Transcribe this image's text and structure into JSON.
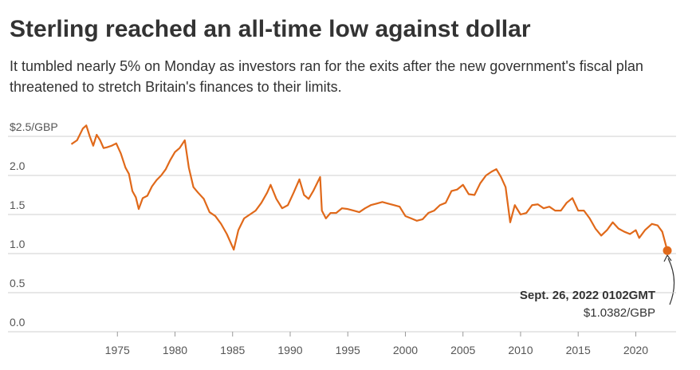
{
  "chart_data": {
    "type": "line",
    "title": "Sterling reached an all-time low against dollar",
    "subtitle": [
      "It tumbled nearly 5% on Monday as investors ran for the exits after the new government's fiscal plan",
      "threatened to stretch Britain's finances to their limits."
    ],
    "color": "#e0691a",
    "x": [
      1971,
      1971.5,
      1972,
      1972.3,
      1972.6,
      1972.9,
      1973.2,
      1973.5,
      1973.8,
      1974.1,
      1974.5,
      1974.9,
      1975.3,
      1975.7,
      1976,
      1976.3,
      1976.6,
      1976.85,
      1977.2,
      1977.6,
      1978,
      1978.4,
      1978.8,
      1979.2,
      1979.6,
      1980,
      1980.4,
      1980.85,
      1981.2,
      1981.6,
      1982,
      1982.5,
      1983,
      1983.5,
      1984,
      1984.5,
      1985.1,
      1985.5,
      1986,
      1986.5,
      1987,
      1987.5,
      1988,
      1988.3,
      1988.8,
      1989.3,
      1989.8,
      1990.3,
      1990.8,
      1991.2,
      1991.6,
      1992,
      1992.6,
      1992.75,
      1993.1,
      1993.5,
      1994,
      1994.5,
      1995,
      1995.5,
      1996,
      1996.5,
      1997,
      1997.5,
      1998,
      1998.5,
      1999,
      1999.5,
      2000,
      2000.5,
      2001,
      2001.5,
      2002,
      2002.5,
      2003,
      2003.5,
      2004,
      2004.5,
      2005,
      2005.5,
      2006,
      2006.5,
      2007,
      2007.5,
      2007.9,
      2008.3,
      2008.7,
      2009.1,
      2009.5,
      2010,
      2010.5,
      2011,
      2011.5,
      2012,
      2012.5,
      2013,
      2013.5,
      2014,
      2014.5,
      2015,
      2015.5,
      2016,
      2016.5,
      2017,
      2017.5,
      2018,
      2018.5,
      2019,
      2019.5,
      2020,
      2020.3,
      2020.8,
      2021.4,
      2021.9,
      2022.3,
      2022.74
    ],
    "values": [
      2.4,
      2.45,
      2.6,
      2.64,
      2.5,
      2.38,
      2.52,
      2.45,
      2.35,
      2.36,
      2.38,
      2.41,
      2.28,
      2.1,
      2.02,
      1.8,
      1.72,
      1.57,
      1.71,
      1.74,
      1.86,
      1.94,
      2.0,
      2.08,
      2.2,
      2.3,
      2.35,
      2.45,
      2.1,
      1.85,
      1.78,
      1.7,
      1.53,
      1.48,
      1.38,
      1.25,
      1.05,
      1.3,
      1.45,
      1.5,
      1.55,
      1.65,
      1.78,
      1.88,
      1.7,
      1.58,
      1.62,
      1.78,
      1.95,
      1.75,
      1.7,
      1.8,
      1.98,
      1.55,
      1.45,
      1.52,
      1.52,
      1.58,
      1.57,
      1.55,
      1.53,
      1.58,
      1.62,
      1.64,
      1.66,
      1.64,
      1.62,
      1.6,
      1.48,
      1.45,
      1.42,
      1.44,
      1.52,
      1.55,
      1.62,
      1.65,
      1.8,
      1.82,
      1.88,
      1.76,
      1.75,
      1.9,
      2.0,
      2.05,
      2.08,
      1.98,
      1.85,
      1.4,
      1.62,
      1.5,
      1.52,
      1.62,
      1.63,
      1.58,
      1.6,
      1.55,
      1.55,
      1.65,
      1.71,
      1.55,
      1.55,
      1.45,
      1.32,
      1.23,
      1.3,
      1.4,
      1.32,
      1.28,
      1.25,
      1.3,
      1.2,
      1.3,
      1.38,
      1.36,
      1.28,
      1.0382
    ],
    "xlim": [
      1965.5,
      2023.5
    ],
    "xticks": [
      1975,
      1980,
      1985,
      1990,
      1995,
      2000,
      2005,
      2010,
      2015,
      2020
    ],
    "ylim": [
      0,
      2.5
    ],
    "yticks": [
      {
        "value": 0,
        "label": "0.0"
      },
      0.5,
      {
        "value": 1,
        "label": "1.0"
      },
      1.5,
      {
        "value": 2,
        "label": "2.0"
      },
      {
        "value": 2.5,
        "label": "$2.5/GBP"
      }
    ],
    "grid": true,
    "annotation": {
      "text": "Sept. 26, 2022 0102GMT",
      "x": 2022.74,
      "value": 1.0382,
      "value_label": "$1.0382/GBP"
    }
  }
}
